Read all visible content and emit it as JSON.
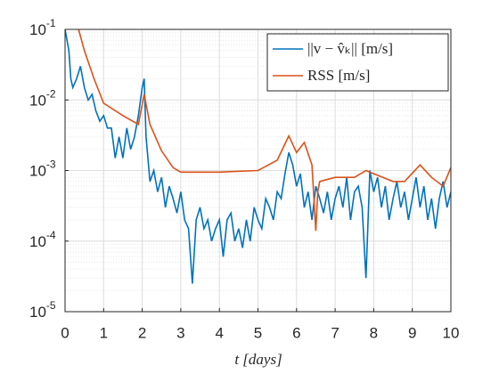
{
  "chart_data": {
    "type": "line",
    "xlabel": "t [days]",
    "x_log": false,
    "y_log": true,
    "grid": true,
    "minor_grid": true,
    "legend": "upper right",
    "xlim": [
      0,
      10
    ],
    "xticks": [
      0,
      1,
      2,
      3,
      4,
      5,
      6,
      7,
      8,
      9,
      10
    ],
    "ylim": [
      1e-05,
      0.1
    ],
    "yticks": [
      {
        "value": 1e-05,
        "label": "10",
        "exponent": "-5"
      },
      {
        "value": 0.0001,
        "label": "10",
        "exponent": "-4"
      },
      {
        "value": 0.001,
        "label": "10",
        "exponent": "-3"
      },
      {
        "value": 0.01,
        "label": "10",
        "exponent": "-2"
      },
      {
        "value": 0.1,
        "label": "10",
        "exponent": "-1"
      }
    ],
    "series": [
      {
        "name": "||v − v̂ₖ|| [m/s]",
        "color": "#0072bd",
        "x": [
          0,
          0.1,
          0.15,
          0.2,
          0.3,
          0.4,
          0.5,
          0.6,
          0.7,
          0.8,
          0.9,
          1.0,
          1.1,
          1.2,
          1.3,
          1.4,
          1.5,
          1.6,
          1.7,
          1.8,
          1.9,
          2.0,
          2.05,
          2.1,
          2.2,
          2.3,
          2.4,
          2.5,
          2.6,
          2.7,
          2.8,
          2.9,
          3.0,
          3.1,
          3.2,
          3.3,
          3.4,
          3.5,
          3.6,
          3.7,
          3.8,
          3.9,
          4.0,
          4.1,
          4.2,
          4.3,
          4.4,
          4.5,
          4.6,
          4.7,
          4.8,
          4.9,
          5.0,
          5.1,
          5.2,
          5.3,
          5.4,
          5.5,
          5.6,
          5.7,
          5.8,
          5.9,
          6.0,
          6.1,
          6.2,
          6.3,
          6.4,
          6.5,
          6.6,
          6.7,
          6.8,
          6.9,
          7.0,
          7.1,
          7.2,
          7.3,
          7.4,
          7.5,
          7.6,
          7.7,
          7.8,
          7.9,
          8.0,
          8.1,
          8.2,
          8.3,
          8.4,
          8.5,
          8.6,
          8.7,
          8.8,
          8.9,
          9.0,
          9.1,
          9.2,
          9.3,
          9.4,
          9.5,
          9.6,
          9.7,
          9.8,
          9.9,
          10
        ],
        "values": [
          0.1,
          0.05,
          0.02,
          0.015,
          0.02,
          0.03,
          0.015,
          0.01,
          0.012,
          0.007,
          0.005,
          0.006,
          0.004,
          0.004,
          0.0015,
          0.003,
          0.0015,
          0.004,
          0.002,
          0.003,
          0.006,
          0.015,
          0.02,
          0.003,
          0.0007,
          0.001,
          0.0005,
          0.0008,
          0.0003,
          0.0006,
          0.0004,
          0.00025,
          0.0005,
          0.0002,
          0.00015,
          2.5e-05,
          0.0002,
          0.0003,
          0.00015,
          0.0002,
          0.0001,
          0.00015,
          0.0002,
          6e-05,
          0.0002,
          0.00025,
          0.0001,
          0.00015,
          8e-05,
          0.0002,
          0.0001,
          0.0003,
          0.0002,
          0.00015,
          0.0004,
          0.0003,
          0.0002,
          0.0005,
          0.0004,
          0.0009,
          0.0018,
          0.0012,
          0.0006,
          0.0009,
          0.0003,
          0.0005,
          0.0002,
          0.0006,
          0.0004,
          0.00025,
          0.0005,
          0.0002,
          0.0004,
          0.0006,
          0.0003,
          0.0008,
          0.0002,
          0.0005,
          0.0006,
          0.0003,
          3e-05,
          0.001,
          0.0005,
          0.0008,
          0.0003,
          0.0006,
          0.0002,
          0.0004,
          0.0007,
          0.0003,
          0.0005,
          0.0002,
          0.0004,
          0.0008,
          0.0003,
          0.0006,
          0.0002,
          0.0004,
          0.00015,
          0.0004,
          0.0007,
          0.0003,
          0.0005
        ]
      },
      {
        "name": "RSS [m/s]",
        "color": "#d95319",
        "x": [
          0.35,
          0.5,
          0.75,
          1.0,
          1.5,
          1.9,
          2.05,
          2.2,
          2.5,
          2.8,
          3.0,
          4.0,
          5.0,
          5.5,
          5.8,
          6.0,
          6.2,
          6.4,
          6.5,
          6.55,
          6.6,
          7.0,
          7.5,
          7.8,
          8.0,
          8.5,
          8.8,
          9.2,
          9.5,
          9.8,
          10
        ],
        "values": [
          0.1,
          0.05,
          0.02,
          0.009,
          0.006,
          0.0045,
          0.012,
          0.0045,
          0.0019,
          0.0011,
          0.00095,
          0.00095,
          0.001,
          0.0014,
          0.0031,
          0.0018,
          0.0025,
          0.0012,
          0.00014,
          0.0005,
          0.0007,
          0.0008,
          0.0008,
          0.001,
          0.0009,
          0.0007,
          0.0007,
          0.0012,
          0.0008,
          0.0006,
          0.0011
        ]
      }
    ]
  }
}
